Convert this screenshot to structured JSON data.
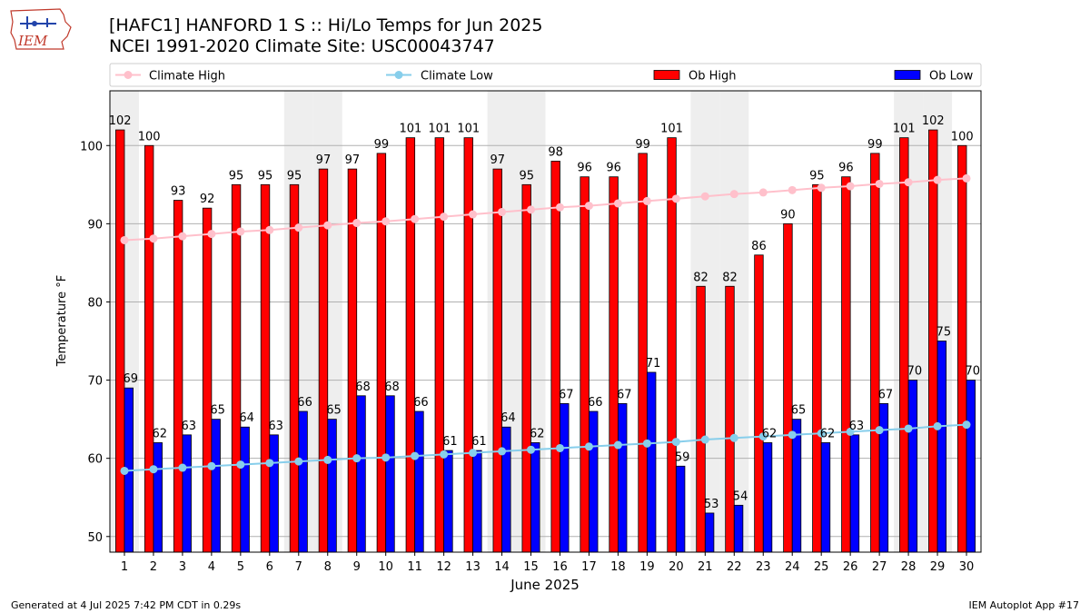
{
  "header": {
    "title_line1": "[HAFC1] HANFORD 1 S :: Hi/Lo Temps for Jun 2025",
    "title_line2": "NCEI 1991-2020 Climate Site: USC00043747",
    "logo_text": "IEM"
  },
  "footer": {
    "generated": "Generated at 4 Jul 2025 7:42 PM CDT in 0.29s",
    "app": "IEM Autoplot App #17"
  },
  "colors": {
    "ob_high": "#ff0000",
    "ob_low": "#0000ff",
    "climate_high": "#ffc0cb",
    "climate_low": "#87ceeb",
    "weekend_shade": "#eeeeee",
    "grid": "#b0b0b0"
  },
  "chart_data": {
    "type": "bar",
    "title": "[HAFC1] HANFORD 1 S :: Hi/Lo Temps for Jun 2025",
    "subtitle": "NCEI 1991-2020 Climate Site: USC00043747",
    "xlabel": "June 2025",
    "ylabel": "Temperature °F",
    "ylim": [
      48,
      107
    ],
    "yticks": [
      50,
      60,
      70,
      80,
      90,
      100
    ],
    "grid": true,
    "legend_placement": "top, above plot",
    "categories": [
      "1",
      "2",
      "3",
      "4",
      "5",
      "6",
      "7",
      "8",
      "9",
      "10",
      "11",
      "12",
      "13",
      "14",
      "15",
      "16",
      "17",
      "18",
      "19",
      "20",
      "21",
      "22",
      "23",
      "24",
      "25",
      "26",
      "27",
      "28",
      "29",
      "30"
    ],
    "shaded_days": [
      1,
      7,
      8,
      14,
      15,
      21,
      22,
      28,
      29
    ],
    "series": [
      {
        "name": "Climate High",
        "type": "line",
        "values": [
          87.9,
          88.1,
          88.4,
          88.7,
          89.0,
          89.2,
          89.5,
          89.8,
          90.1,
          90.3,
          90.6,
          90.9,
          91.2,
          91.5,
          91.8,
          92.1,
          92.3,
          92.6,
          92.9,
          93.2,
          93.5,
          93.8,
          94.0,
          94.3,
          94.6,
          94.8,
          95.1,
          95.3,
          95.6,
          95.8
        ]
      },
      {
        "name": "Climate Low",
        "type": "line",
        "values": [
          58.4,
          58.6,
          58.8,
          59.0,
          59.2,
          59.4,
          59.6,
          59.8,
          60.0,
          60.1,
          60.3,
          60.5,
          60.7,
          60.9,
          61.1,
          61.3,
          61.5,
          61.7,
          61.9,
          62.1,
          62.4,
          62.6,
          62.8,
          63.0,
          63.2,
          63.4,
          63.6,
          63.8,
          64.1,
          64.3
        ]
      },
      {
        "name": "Ob High",
        "type": "bar",
        "values": [
          102,
          100,
          93,
          92,
          95,
          95,
          95,
          97,
          97,
          99,
          101,
          101,
          101,
          97,
          95,
          98,
          96,
          96,
          99,
          101,
          82,
          82,
          86,
          90,
          95,
          96,
          99,
          101,
          102,
          100
        ]
      },
      {
        "name": "Ob Low",
        "type": "bar",
        "values": [
          69,
          62,
          63,
          65,
          64,
          63,
          66,
          65,
          68,
          68,
          66,
          61,
          61,
          64,
          62,
          67,
          66,
          67,
          71,
          59,
          53,
          54,
          62,
          65,
          62,
          63,
          67,
          70,
          75,
          70
        ]
      }
    ]
  }
}
